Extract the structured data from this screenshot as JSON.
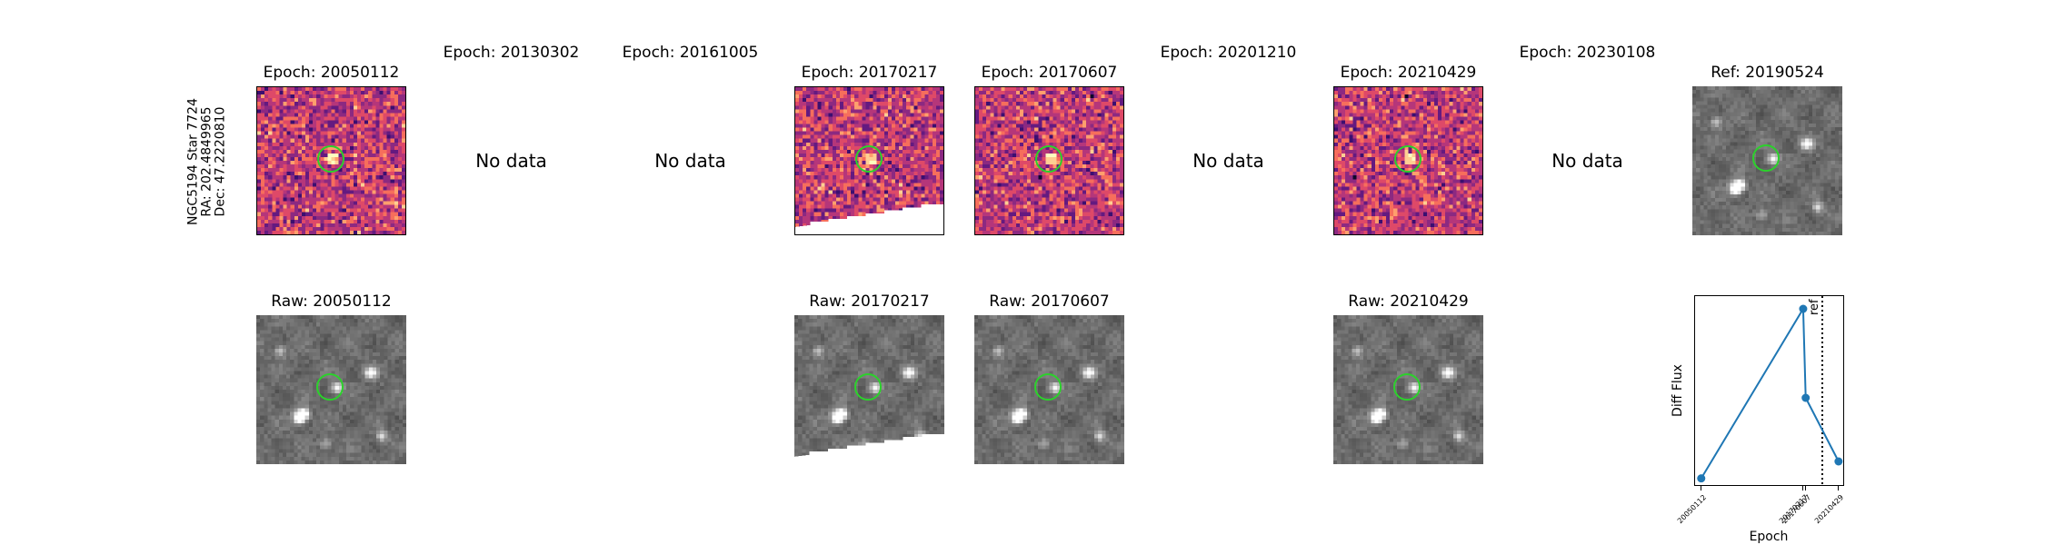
{
  "figure": {
    "star_label": {
      "line1": "NGC5194 Star 7724",
      "line2": "RA: 202.4849965",
      "line3": "Dec: 47.2220810"
    },
    "no_data_text": "No data",
    "top_panels": [
      {
        "title": "Epoch: 20050112",
        "has_data": true,
        "kind": "diff",
        "seed": 11
      },
      {
        "title": "Epoch: 20130302",
        "has_data": false
      },
      {
        "title": "Epoch: 20161005",
        "has_data": false
      },
      {
        "title": "Epoch: 20170217",
        "has_data": true,
        "kind": "diff",
        "seed": 23,
        "mask": true
      },
      {
        "title": "Epoch: 20170607",
        "has_data": true,
        "kind": "diff",
        "seed": 37
      },
      {
        "title": "Epoch: 20201210",
        "has_data": false
      },
      {
        "title": "Epoch: 20210429",
        "has_data": true,
        "kind": "diff",
        "seed": 51
      },
      {
        "title": "Epoch: 20230108",
        "has_data": false
      },
      {
        "title": "Ref: 20190524",
        "has_data": true,
        "kind": "raw",
        "seed": 5
      }
    ],
    "bottom_panels": [
      {
        "title": "Raw: 20050112",
        "column": 0,
        "seed": 5
      },
      {
        "title": "Raw: 20170217",
        "column": 3,
        "seed": 5,
        "mask": true
      },
      {
        "title": "Raw: 20170607",
        "column": 4,
        "seed": 5
      },
      {
        "title": "Raw: 20210429",
        "column": 6,
        "seed": 5
      }
    ],
    "colors": {
      "diff_colormap": [
        "#0d0829",
        "#3b0f70",
        "#641a80",
        "#8c2981",
        "#b5367a",
        "#de4968",
        "#f66e5c",
        "#fe9f6d",
        "#fecf92",
        "#fcfdbf"
      ],
      "aperture_ring": "#2bd12b",
      "line": "#1f77b4"
    }
  },
  "chart_data": {
    "type": "line",
    "title": "",
    "xlabel": "Epoch",
    "ylabel": "Diff Flux",
    "categories": [
      "20050112",
      "20170217",
      "20170607",
      "20210429"
    ],
    "x_numeric": [
      2005.03,
      2017.13,
      2017.43,
      2021.33
    ],
    "values": [
      -1.0,
      1.0,
      -0.05,
      -0.8
    ],
    "ylim": [
      -1.1,
      1.15
    ],
    "reference_line": {
      "label": "ref",
      "x": 2019.4,
      "style": "dotted"
    },
    "grid": false,
    "marker": "circle"
  }
}
